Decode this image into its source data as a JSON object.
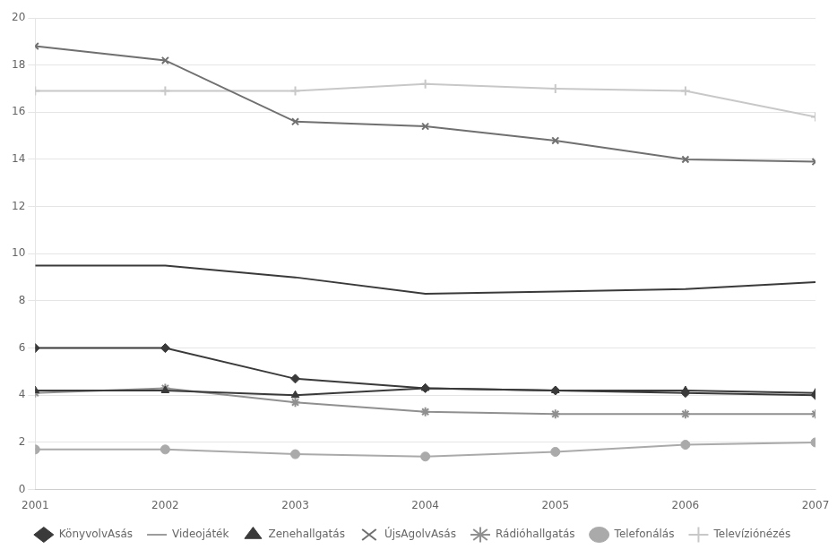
{
  "chart_data": {
    "type": "line",
    "x": [
      2001,
      2002,
      2003,
      2004,
      2005,
      2006,
      2007
    ],
    "series": [
      {
        "name": "KönyvolvAsás",
        "color": "#3a3a3a",
        "marker": "diamond",
        "values": [
          6.0,
          6.0,
          4.7,
          4.3,
          4.2,
          4.1,
          4.0
        ]
      },
      {
        "name": "Videojáték",
        "color": "#3a3a3a",
        "marker": "none",
        "values": [
          9.5,
          9.5,
          9.0,
          8.3,
          8.4,
          8.5,
          8.8
        ]
      },
      {
        "name": "Zenehallgatás",
        "color": "#3a3a3a",
        "marker": "triangle",
        "values": [
          4.2,
          4.2,
          4.0,
          4.3,
          4.2,
          4.2,
          4.1
        ]
      },
      {
        "name": "ÚjsAgolvAsás",
        "color": "#707070",
        "marker": "x",
        "values": [
          18.8,
          18.2,
          15.6,
          15.4,
          14.8,
          14.0,
          13.9
        ]
      },
      {
        "name": "Rádióhallgatás",
        "color": "#909090",
        "marker": "star",
        "values": [
          4.1,
          4.3,
          3.7,
          3.3,
          3.2,
          3.2,
          3.2
        ]
      },
      {
        "name": "Telefonálás",
        "color": "#aaaaaa",
        "marker": "circle",
        "values": [
          1.7,
          1.7,
          1.5,
          1.4,
          1.6,
          1.9,
          2.0
        ]
      },
      {
        "name": "Televíziónézés",
        "color": "#c8c8c8",
        "marker": "plus",
        "values": [
          16.9,
          16.9,
          16.9,
          17.2,
          17.0,
          16.9,
          15.8
        ]
      }
    ],
    "xlim": [
      2001,
      2007
    ],
    "xticks": [
      2001,
      2002,
      2003,
      2004,
      2005,
      2006,
      2007
    ],
    "ylim": [
      0,
      20
    ],
    "yticks": [
      0,
      2,
      4,
      6,
      8,
      10,
      12,
      14,
      16,
      18,
      20
    ],
    "grid": "y",
    "legend": "bottom"
  }
}
